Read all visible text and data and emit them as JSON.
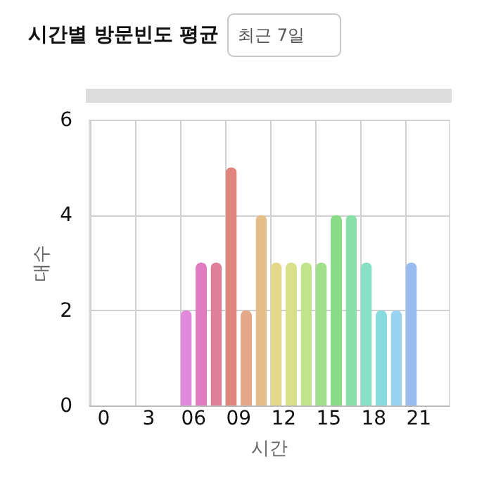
{
  "chart_data": {
    "type": "bar",
    "title": "시간별 방문빈도 평균",
    "annotations": [
      "최근 7일"
    ],
    "xlabel": "시간",
    "ylabel": "대수",
    "categories": [
      "0",
      null,
      null,
      "3",
      null,
      null,
      "06",
      null,
      null,
      "09",
      null,
      null,
      "12",
      null,
      null,
      "15",
      null,
      null,
      "18",
      null,
      null,
      "21",
      null,
      null
    ],
    "values": [
      0,
      0,
      0,
      0,
      0,
      0,
      2,
      3,
      3,
      5,
      2,
      4,
      3,
      3,
      3,
      3,
      4,
      4,
      3,
      2,
      2,
      3,
      0,
      0
    ],
    "colors": [
      "#dd88e0",
      "#dd88e0",
      "#dd88e0",
      "#dd88e0",
      "#dd88e0",
      "#dd88e0",
      "#e088dc",
      "#e07cc0",
      "#e08098",
      "#e0857e",
      "#e4a888",
      "#e4be88",
      "#e4d88a",
      "#d8e08a",
      "#bfe48a",
      "#a0e08a",
      "#88dc88",
      "#88e0a8",
      "#88e0c4",
      "#88dce0",
      "#98d4f0",
      "#98bcf0",
      "#98bcf0",
      "#98bcf0"
    ],
    "ylim": [
      0,
      6
    ],
    "yticks": [
      0,
      2,
      4,
      6
    ],
    "grid": true
  }
}
